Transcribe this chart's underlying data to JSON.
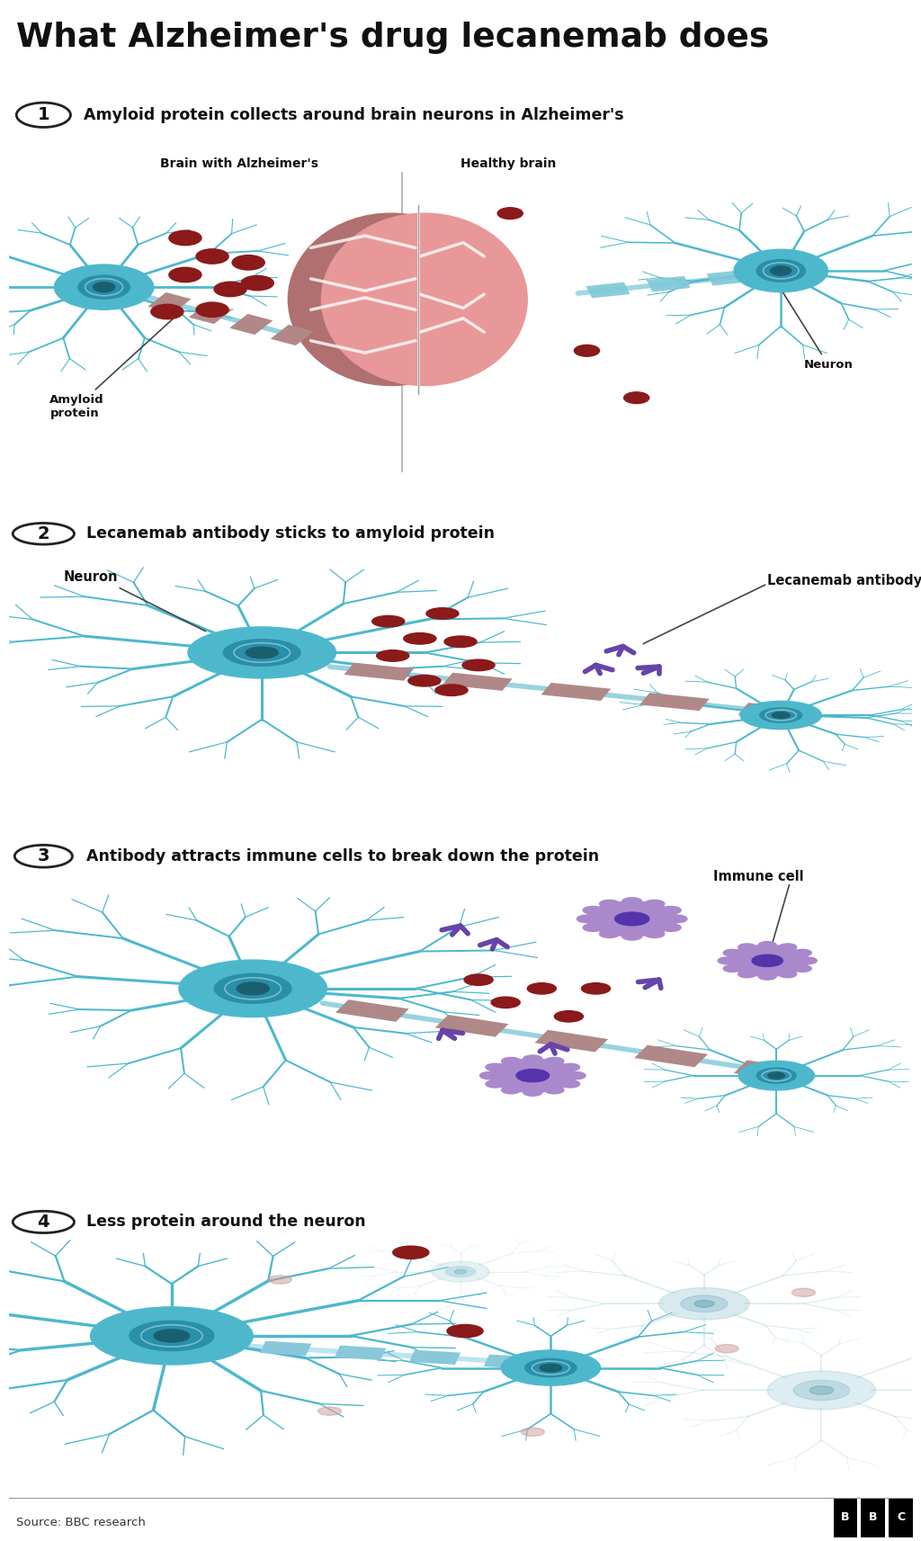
{
  "title": "What Alzheimer's drug lecanemab does",
  "bg": "#ffffff",
  "panel_bg": "#ebebeb",
  "neuron_fill": "#4db8cc",
  "neuron_mid": "#2a8fa8",
  "neuron_dark": "#1a5f70",
  "neuron_line": "#3aa8c0",
  "axon_protein_color": "#b08888",
  "axon_protein_light": "#c8a8a8",
  "axon_connector": "#7fc8d8",
  "amyloid_color": "#8b1a1a",
  "antibody_color": "#6644aa",
  "immune_color": "#aa88cc",
  "immune_dark": "#5533aa",
  "brain_left": "#b07070",
  "brain_right": "#e89898",
  "text_color": "#111111",
  "source_text": "Source: BBC research",
  "sections": [
    {
      "num": "1",
      "text": "Amyloid protein collects around brain neurons in Alzheimer's"
    },
    {
      "num": "2",
      "text": "Lecanemab antibody sticks to amyloid protein"
    },
    {
      "num": "3",
      "text": "Antibody attracts immune cells to break down the protein"
    },
    {
      "num": "4",
      "text": "Less protein around the neuron"
    }
  ]
}
